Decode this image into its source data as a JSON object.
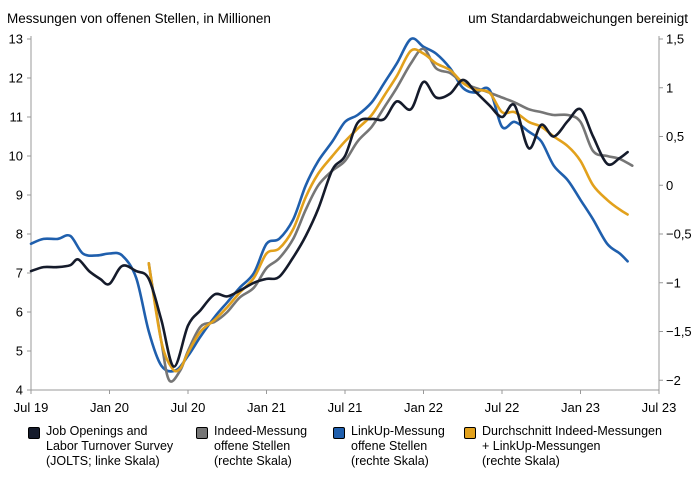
{
  "header": {
    "left": "Messungen von offenen Stellen, in Millionen",
    "right": "um Standardabweichungen bereinigt"
  },
  "colors": {
    "jolts": "#151b2b",
    "indeed": "#767676",
    "linkup": "#1f5fad",
    "avg": "#e2a11c",
    "axis": "#999999",
    "grid": "#bfbfbf"
  },
  "legend": [
    {
      "key": "jolts",
      "label": "Job Openings and\nLabor Turnover Survey\n(JOLTS; linke Skala)"
    },
    {
      "key": "indeed",
      "label": "Indeed-Messung\noffene Stellen\n(rechte Skala)"
    },
    {
      "key": "linkup",
      "label": "LinkUp-Messung\noffene Stellen\n(rechte Skala)"
    },
    {
      "key": "avg",
      "label": "Durchschnitt Indeed-Messungen\n+ LinkUp-Messungen\n(rechte Skala)"
    }
  ],
  "chart_data": {
    "type": "line",
    "title": "Messungen von offenen Stellen, in Millionen",
    "ylabel_left": "Messungen von offenen Stellen, in Millionen",
    "ylabel_right": "um Standardabweichungen bereinigt",
    "x_ticks": [
      "Jul 19",
      "Jan 20",
      "Jul 20",
      "Jan 21",
      "Jul 21",
      "Jan 22",
      "Jul 22",
      "Jan 23",
      "Jul 23"
    ],
    "x_range": [
      2019.5,
      2023.5
    ],
    "y_left": {
      "min": 4,
      "max": 13,
      "ticks": [
        "4",
        "5",
        "6",
        "7",
        "8",
        "9",
        "10",
        "11",
        "12",
        "13"
      ]
    },
    "y_right": {
      "min": -2.1,
      "max": 1.5,
      "ticks": [
        {
          "value": -2,
          "label": "−2"
        },
        {
          "value": -1.5,
          "label": "−1,5"
        },
        {
          "value": -1,
          "label": "−1"
        },
        {
          "value": -0.5,
          "label": "−0,5"
        },
        {
          "value": 0,
          "label": "0"
        },
        {
          "value": 0.5,
          "label": "0,5"
        },
        {
          "value": 1,
          "label": "1"
        },
        {
          "value": 1.5,
          "label": "1,5"
        }
      ]
    },
    "series": [
      {
        "key": "jolts",
        "name": "Job Openings and Labor Turnover Survey (JOLTS; linke Skala)",
        "axis": "left",
        "points": [
          [
            2019.5,
            7.05
          ],
          [
            2019.58,
            7.15
          ],
          [
            2019.67,
            7.15
          ],
          [
            2019.75,
            7.2
          ],
          [
            2019.8,
            7.35
          ],
          [
            2019.87,
            7.05
          ],
          [
            2019.94,
            6.85
          ],
          [
            2020.0,
            6.72
          ],
          [
            2020.08,
            7.18
          ],
          [
            2020.17,
            7.05
          ],
          [
            2020.25,
            6.85
          ],
          [
            2020.33,
            5.8
          ],
          [
            2020.41,
            4.6
          ],
          [
            2020.5,
            5.65
          ],
          [
            2020.58,
            6.05
          ],
          [
            2020.67,
            6.45
          ],
          [
            2020.75,
            6.4
          ],
          [
            2020.83,
            6.55
          ],
          [
            2020.92,
            6.75
          ],
          [
            2021.0,
            6.85
          ],
          [
            2021.08,
            6.9
          ],
          [
            2021.17,
            7.4
          ],
          [
            2021.25,
            7.95
          ],
          [
            2021.33,
            8.65
          ],
          [
            2021.42,
            9.65
          ],
          [
            2021.5,
            10.0
          ],
          [
            2021.58,
            10.85
          ],
          [
            2021.67,
            10.95
          ],
          [
            2021.75,
            10.95
          ],
          [
            2021.83,
            11.4
          ],
          [
            2021.92,
            11.2
          ],
          [
            2022.0,
            11.9
          ],
          [
            2022.08,
            11.5
          ],
          [
            2022.17,
            11.6
          ],
          [
            2022.25,
            11.95
          ],
          [
            2022.33,
            11.65
          ],
          [
            2022.42,
            11.3
          ],
          [
            2022.5,
            11.0
          ],
          [
            2022.58,
            11.3
          ],
          [
            2022.67,
            10.2
          ],
          [
            2022.75,
            10.8
          ],
          [
            2022.83,
            10.5
          ],
          [
            2022.92,
            10.9
          ],
          [
            2023.0,
            11.2
          ],
          [
            2023.08,
            10.5
          ],
          [
            2023.17,
            9.8
          ],
          [
            2023.25,
            9.95
          ],
          [
            2023.3,
            10.1
          ]
        ]
      },
      {
        "key": "indeed",
        "name": "Indeed-Messung offene Stellen (rechte Skala)",
        "axis": "right",
        "points": [
          [
            2020.25,
            -0.8
          ],
          [
            2020.33,
            -1.6
          ],
          [
            2020.38,
            -2.0
          ],
          [
            2020.45,
            -1.9
          ],
          [
            2020.5,
            -1.7
          ],
          [
            2020.58,
            -1.45
          ],
          [
            2020.67,
            -1.4
          ],
          [
            2020.75,
            -1.3
          ],
          [
            2020.83,
            -1.15
          ],
          [
            2020.92,
            -1.05
          ],
          [
            2021.0,
            -0.85
          ],
          [
            2021.08,
            -0.75
          ],
          [
            2021.17,
            -0.55
          ],
          [
            2021.25,
            -0.25
          ],
          [
            2021.33,
            0.0
          ],
          [
            2021.42,
            0.15
          ],
          [
            2021.5,
            0.25
          ],
          [
            2021.58,
            0.45
          ],
          [
            2021.67,
            0.6
          ],
          [
            2021.75,
            0.8
          ],
          [
            2021.83,
            1.0
          ],
          [
            2021.92,
            1.25
          ],
          [
            2022.0,
            1.4
          ],
          [
            2022.08,
            1.2
          ],
          [
            2022.17,
            1.15
          ],
          [
            2022.25,
            1.05
          ],
          [
            2022.33,
            1.0
          ],
          [
            2022.42,
            0.95
          ],
          [
            2022.5,
            0.9
          ],
          [
            2022.58,
            0.85
          ],
          [
            2022.67,
            0.78
          ],
          [
            2022.75,
            0.75
          ],
          [
            2022.83,
            0.72
          ],
          [
            2022.92,
            0.72
          ],
          [
            2023.0,
            0.65
          ],
          [
            2023.08,
            0.35
          ],
          [
            2023.17,
            0.3
          ],
          [
            2023.25,
            0.27
          ],
          [
            2023.33,
            0.2
          ]
        ]
      },
      {
        "key": "linkup",
        "name": "LinkUp-Messung offene Stellen (rechte Skala)",
        "axis": "right",
        "points": [
          [
            2019.5,
            -0.6
          ],
          [
            2019.58,
            -0.55
          ],
          [
            2019.67,
            -0.55
          ],
          [
            2019.75,
            -0.52
          ],
          [
            2019.83,
            -0.7
          ],
          [
            2019.92,
            -0.72
          ],
          [
            2020.0,
            -0.7
          ],
          [
            2020.08,
            -0.72
          ],
          [
            2020.17,
            -0.95
          ],
          [
            2020.25,
            -1.5
          ],
          [
            2020.33,
            -1.85
          ],
          [
            2020.42,
            -1.9
          ],
          [
            2020.5,
            -1.75
          ],
          [
            2020.58,
            -1.55
          ],
          [
            2020.67,
            -1.35
          ],
          [
            2020.75,
            -1.2
          ],
          [
            2020.83,
            -1.05
          ],
          [
            2020.92,
            -0.9
          ],
          [
            2021.0,
            -0.6
          ],
          [
            2021.08,
            -0.55
          ],
          [
            2021.17,
            -0.35
          ],
          [
            2021.25,
            0.0
          ],
          [
            2021.33,
            0.25
          ],
          [
            2021.42,
            0.45
          ],
          [
            2021.5,
            0.65
          ],
          [
            2021.58,
            0.72
          ],
          [
            2021.67,
            0.85
          ],
          [
            2021.75,
            1.05
          ],
          [
            2021.83,
            1.25
          ],
          [
            2021.92,
            1.5
          ],
          [
            2022.0,
            1.42
          ],
          [
            2022.08,
            1.35
          ],
          [
            2022.17,
            1.2
          ],
          [
            2022.25,
            1.0
          ],
          [
            2022.33,
            0.95
          ],
          [
            2022.42,
            0.98
          ],
          [
            2022.5,
            0.6
          ],
          [
            2022.58,
            0.65
          ],
          [
            2022.67,
            0.55
          ],
          [
            2022.75,
            0.45
          ],
          [
            2022.83,
            0.2
          ],
          [
            2022.92,
            0.05
          ],
          [
            2023.0,
            -0.15
          ],
          [
            2023.08,
            -0.35
          ],
          [
            2023.17,
            -0.6
          ],
          [
            2023.25,
            -0.7
          ],
          [
            2023.3,
            -0.78
          ]
        ]
      },
      {
        "key": "avg",
        "name": "Durchschnitt Indeed-Messungen + LinkUp-Messungen (rechte Skala)",
        "axis": "right",
        "points": [
          [
            2020.25,
            -0.8
          ],
          [
            2020.33,
            -1.6
          ],
          [
            2020.4,
            -1.88
          ],
          [
            2020.45,
            -1.88
          ],
          [
            2020.5,
            -1.72
          ],
          [
            2020.58,
            -1.5
          ],
          [
            2020.67,
            -1.38
          ],
          [
            2020.75,
            -1.25
          ],
          [
            2020.83,
            -1.1
          ],
          [
            2020.92,
            -0.95
          ],
          [
            2021.0,
            -0.7
          ],
          [
            2021.08,
            -0.65
          ],
          [
            2021.17,
            -0.45
          ],
          [
            2021.25,
            -0.12
          ],
          [
            2021.33,
            0.12
          ],
          [
            2021.42,
            0.3
          ],
          [
            2021.5,
            0.45
          ],
          [
            2021.58,
            0.58
          ],
          [
            2021.67,
            0.72
          ],
          [
            2021.75,
            0.92
          ],
          [
            2021.83,
            1.12
          ],
          [
            2021.92,
            1.38
          ],
          [
            2022.0,
            1.35
          ],
          [
            2022.08,
            1.25
          ],
          [
            2022.17,
            1.18
          ],
          [
            2022.25,
            1.05
          ],
          [
            2022.33,
            0.98
          ],
          [
            2022.42,
            0.95
          ],
          [
            2022.5,
            0.75
          ],
          [
            2022.58,
            0.75
          ],
          [
            2022.67,
            0.65
          ],
          [
            2022.75,
            0.6
          ],
          [
            2022.83,
            0.5
          ],
          [
            2022.92,
            0.4
          ],
          [
            2023.0,
            0.25
          ],
          [
            2023.08,
            0.0
          ],
          [
            2023.17,
            -0.15
          ],
          [
            2023.25,
            -0.25
          ],
          [
            2023.3,
            -0.3
          ]
        ]
      }
    ]
  }
}
